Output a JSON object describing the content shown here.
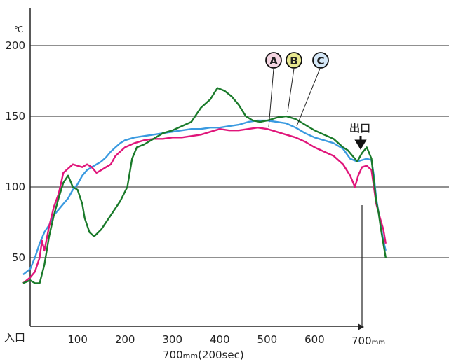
{
  "chart_data": {
    "type": "line",
    "y_unit": "℃",
    "x_axis_start_label": "入口",
    "x_axis_end_label": "700",
    "x_axis_end_unit": "mm",
    "x_caption_value": "700",
    "x_caption_unit": "mm",
    "x_caption_time": "(200sec)",
    "exit_label": "出口",
    "xlim": [
      -15,
      760
    ],
    "ylim": [
      0,
      215
    ],
    "y_ticks": [
      50,
      100,
      150,
      200
    ],
    "x_ticks": [
      100,
      200,
      300,
      400,
      500,
      600
    ],
    "grid": "horizontal",
    "colors": {
      "A": "#e0157a",
      "B": "#1a7a2a",
      "C": "#3a9ae0",
      "axis": "#222222",
      "circle_A_fill": "#f5d5e2",
      "circle_B_fill": "#e8e890",
      "circle_C_fill": "#d5e8f8"
    },
    "series": [
      {
        "name": "A",
        "values": [
          [
            -15,
            32
          ],
          [
            0,
            36
          ],
          [
            10,
            40
          ],
          [
            20,
            50
          ],
          [
            25,
            62
          ],
          [
            30,
            55
          ],
          [
            40,
            72
          ],
          [
            50,
            86
          ],
          [
            60,
            95
          ],
          [
            70,
            110
          ],
          [
            80,
            113
          ],
          [
            90,
            116
          ],
          [
            100,
            115
          ],
          [
            110,
            114
          ],
          [
            120,
            116
          ],
          [
            130,
            114
          ],
          [
            140,
            110
          ],
          [
            150,
            112
          ],
          [
            160,
            114
          ],
          [
            170,
            116
          ],
          [
            180,
            122
          ],
          [
            200,
            128
          ],
          [
            220,
            131
          ],
          [
            240,
            133
          ],
          [
            260,
            134
          ],
          [
            280,
            134
          ],
          [
            300,
            135
          ],
          [
            320,
            135
          ],
          [
            340,
            136
          ],
          [
            360,
            137
          ],
          [
            380,
            139
          ],
          [
            400,
            141
          ],
          [
            420,
            140
          ],
          [
            440,
            140
          ],
          [
            460,
            141
          ],
          [
            480,
            142
          ],
          [
            500,
            141
          ],
          [
            520,
            139
          ],
          [
            540,
            137
          ],
          [
            560,
            135
          ],
          [
            580,
            132
          ],
          [
            600,
            128
          ],
          [
            620,
            125
          ],
          [
            640,
            122
          ],
          [
            660,
            116
          ],
          [
            675,
            108
          ],
          [
            685,
            100
          ],
          [
            692,
            108
          ],
          [
            700,
            114
          ],
          [
            710,
            115
          ],
          [
            720,
            112
          ],
          [
            725,
            100
          ],
          [
            730,
            88
          ],
          [
            738,
            78
          ],
          [
            745,
            70
          ],
          [
            750,
            60
          ]
        ]
      },
      {
        "name": "B",
        "values": [
          [
            -15,
            32
          ],
          [
            0,
            34
          ],
          [
            10,
            32
          ],
          [
            20,
            32
          ],
          [
            30,
            45
          ],
          [
            40,
            65
          ],
          [
            50,
            80
          ],
          [
            60,
            92
          ],
          [
            70,
            103
          ],
          [
            80,
            108
          ],
          [
            90,
            100
          ],
          [
            100,
            98
          ],
          [
            110,
            88
          ],
          [
            115,
            78
          ],
          [
            125,
            68
          ],
          [
            135,
            65
          ],
          [
            150,
            70
          ],
          [
            170,
            80
          ],
          [
            190,
            90
          ],
          [
            205,
            100
          ],
          [
            215,
            120
          ],
          [
            225,
            128
          ],
          [
            240,
            130
          ],
          [
            260,
            134
          ],
          [
            280,
            138
          ],
          [
            300,
            140
          ],
          [
            320,
            143
          ],
          [
            340,
            146
          ],
          [
            360,
            156
          ],
          [
            380,
            162
          ],
          [
            395,
            170
          ],
          [
            410,
            168
          ],
          [
            425,
            164
          ],
          [
            440,
            158
          ],
          [
            455,
            150
          ],
          [
            470,
            147
          ],
          [
            485,
            146
          ],
          [
            500,
            147
          ],
          [
            520,
            149
          ],
          [
            540,
            150
          ],
          [
            560,
            148
          ],
          [
            580,
            144
          ],
          [
            600,
            140
          ],
          [
            620,
            137
          ],
          [
            640,
            134
          ],
          [
            660,
            128
          ],
          [
            670,
            126
          ],
          [
            680,
            122
          ],
          [
            690,
            118
          ],
          [
            700,
            124
          ],
          [
            710,
            128
          ],
          [
            720,
            120
          ],
          [
            725,
            105
          ],
          [
            730,
            90
          ],
          [
            735,
            82
          ],
          [
            740,
            70
          ],
          [
            745,
            60
          ],
          [
            750,
            50
          ]
        ]
      },
      {
        "name": "C",
        "values": [
          [
            -15,
            38
          ],
          [
            0,
            42
          ],
          [
            10,
            50
          ],
          [
            20,
            60
          ],
          [
            30,
            68
          ],
          [
            40,
            73
          ],
          [
            50,
            80
          ],
          [
            60,
            84
          ],
          [
            70,
            88
          ],
          [
            80,
            92
          ],
          [
            90,
            98
          ],
          [
            100,
            102
          ],
          [
            110,
            108
          ],
          [
            120,
            112
          ],
          [
            130,
            114
          ],
          [
            140,
            116
          ],
          [
            150,
            118
          ],
          [
            160,
            121
          ],
          [
            170,
            125
          ],
          [
            180,
            128
          ],
          [
            190,
            131
          ],
          [
            200,
            133
          ],
          [
            220,
            135
          ],
          [
            240,
            136
          ],
          [
            260,
            137
          ],
          [
            280,
            138
          ],
          [
            300,
            139
          ],
          [
            320,
            140
          ],
          [
            340,
            141
          ],
          [
            360,
            141
          ],
          [
            380,
            142
          ],
          [
            400,
            142
          ],
          [
            420,
            143
          ],
          [
            440,
            144
          ],
          [
            460,
            146
          ],
          [
            480,
            147
          ],
          [
            500,
            147
          ],
          [
            520,
            146
          ],
          [
            540,
            145
          ],
          [
            560,
            142
          ],
          [
            580,
            138
          ],
          [
            600,
            135
          ],
          [
            620,
            133
          ],
          [
            640,
            131
          ],
          [
            660,
            127
          ],
          [
            675,
            120
          ],
          [
            690,
            118
          ],
          [
            700,
            119
          ],
          [
            710,
            120
          ],
          [
            720,
            119
          ],
          [
            725,
            108
          ],
          [
            730,
            92
          ],
          [
            735,
            82
          ],
          [
            745,
            62
          ],
          [
            750,
            55
          ]
        ]
      }
    ]
  }
}
